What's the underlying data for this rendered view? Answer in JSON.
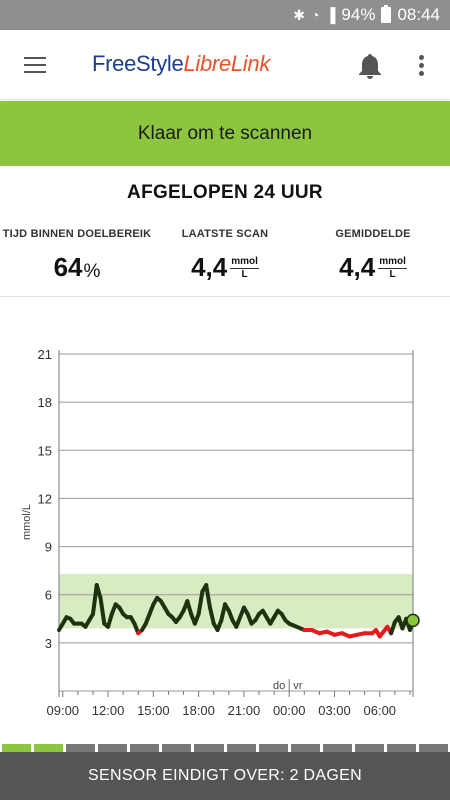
{
  "status_bar": {
    "battery": "94%",
    "time": "08:44",
    "icons": [
      "bluetooth-icon",
      "wifi-icon",
      "signal-icon",
      "battery-icon"
    ]
  },
  "app_bar": {
    "logo_part1": "FreeStyle",
    "logo_part2": "LibreLink",
    "icons": [
      "menu-icon",
      "bell-icon",
      "more-vert-icon"
    ]
  },
  "banner": {
    "text": "Klaar om te scannen",
    "color": "#8cc63f"
  },
  "period_title": "AFGELOPEN 24 UUR",
  "stats": {
    "time_in_range": {
      "label": "TIJD BINNEN DOELBEREIK",
      "value": "64",
      "unit": "%"
    },
    "last_scan": {
      "label": "LAATSTE SCAN",
      "value": "4,4",
      "unit_num": "mmol",
      "unit_den": "L"
    },
    "average": {
      "label": "GEMIDDELDE",
      "value": "4,4",
      "unit_num": "mmol",
      "unit_den": "L"
    }
  },
  "chart_data": {
    "type": "line",
    "ylabel": "mmol/L",
    "ylim": [
      0,
      21
    ],
    "yticks": [
      "3",
      "6",
      "9",
      "12",
      "15",
      "18",
      "21"
    ],
    "xticks": [
      "09:00",
      "12:00",
      "15:00",
      "18:00",
      "21:00",
      "00:00",
      "03:00",
      "06:00"
    ],
    "x_range_hours": [
      8.75,
      32.2
    ],
    "day_labels": {
      "left": "do",
      "right": "vr"
    },
    "target_range": [
      3.9,
      7.3
    ],
    "low_threshold": 3.9,
    "colors": {
      "in_range": "#1e3210",
      "low": "#e21b1b",
      "target_band": "#d9ebc3",
      "current_point": "#8cc63f"
    },
    "series": [
      {
        "x": [
          8.75,
          9.0,
          9.25,
          9.5,
          9.75,
          10.0,
          10.25,
          10.5,
          10.75,
          11.0,
          11.25,
          11.5,
          11.75,
          12.0,
          12.25,
          12.5,
          12.75,
          13.0,
          13.25,
          13.5,
          13.75,
          14.0,
          14.25,
          14.5,
          14.75,
          15.0,
          15.25,
          15.5,
          15.75,
          16.0,
          16.25,
          16.5,
          16.75,
          17.0,
          17.25,
          17.5,
          17.75,
          18.0,
          18.25,
          18.5,
          18.75,
          19.0,
          19.25,
          19.5,
          19.75,
          20.0,
          20.25,
          20.5,
          20.75,
          21.0,
          21.25,
          21.5,
          21.75,
          22.0,
          22.25,
          22.5,
          22.75,
          23.0,
          23.25,
          23.5,
          23.75,
          24.0,
          24.5,
          25.0,
          25.5,
          26.0,
          26.5,
          27.0,
          27.5,
          28.0,
          28.5,
          29.0,
          29.5,
          29.75,
          30.0,
          30.25,
          30.5,
          30.75,
          31.0,
          31.25,
          31.5,
          31.75,
          32.0,
          32.2
        ],
        "y": [
          3.8,
          4.2,
          4.6,
          4.5,
          4.2,
          4.2,
          4.2,
          4.0,
          4.4,
          4.8,
          6.6,
          5.8,
          4.2,
          4.0,
          4.8,
          5.4,
          5.2,
          4.8,
          4.6,
          4.6,
          4.2,
          3.6,
          3.8,
          4.2,
          4.8,
          5.4,
          5.8,
          5.6,
          5.2,
          4.8,
          4.6,
          4.3,
          4.6,
          5.0,
          5.6,
          4.8,
          4.2,
          4.8,
          6.2,
          6.6,
          5.2,
          4.2,
          3.8,
          4.4,
          5.4,
          5.0,
          4.4,
          4.0,
          4.6,
          5.2,
          4.8,
          4.2,
          4.4,
          4.8,
          5.0,
          4.6,
          4.2,
          4.6,
          5.0,
          4.8,
          4.4,
          4.2,
          4.0,
          3.8,
          3.8,
          3.6,
          3.7,
          3.5,
          3.6,
          3.4,
          3.5,
          3.6,
          3.6,
          3.8,
          3.4,
          3.7,
          4.0,
          3.6,
          4.3,
          4.6,
          3.9,
          4.5,
          3.8,
          4.4
        ]
      }
    ]
  },
  "sensor_progress": {
    "segments": 14,
    "completed": 2
  },
  "footer": {
    "text": "SENSOR EINDIGT OVER: 2 DAGEN"
  }
}
